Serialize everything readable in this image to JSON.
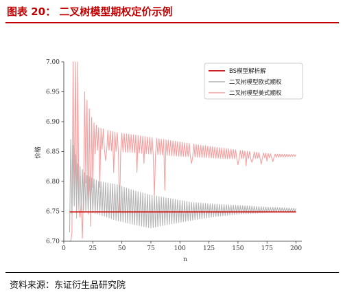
{
  "figure": {
    "number": "图表 20：",
    "title": "二叉树模型期权定价示例"
  },
  "source": "资料来源：东证衍生品研究院",
  "colors": {
    "title": "#c00000",
    "bs": "#c80000",
    "european": "#b4b4b4",
    "american": "#f4a0a0"
  },
  "chart_data": {
    "type": "line",
    "xlabel": "n",
    "ylabel": "价格",
    "xlim": [
      0,
      205
    ],
    "ylim": [
      6.7,
      7.0
    ],
    "xticks": [
      0,
      25,
      50,
      75,
      100,
      125,
      150,
      175,
      200
    ],
    "yticks": [
      6.7,
      6.75,
      6.8,
      6.85,
      6.9,
      6.95,
      7.0
    ],
    "grid": false,
    "legend_position": "upper-right",
    "series": [
      {
        "name": "BS模型解析解",
        "kind": "constant",
        "x_range": [
          5,
          200
        ],
        "value": 6.749
      },
      {
        "name": "二叉树模型欧式期权",
        "kind": "oscillating",
        "x_range": [
          5,
          200
        ],
        "envelope": [
          {
            "n": 5,
            "lower": 6.715,
            "upper": 6.875
          },
          {
            "n": 8,
            "lower": 6.76,
            "upper": 6.86
          },
          {
            "n": 12,
            "lower": 6.755,
            "upper": 6.83
          },
          {
            "n": 20,
            "lower": 6.75,
            "upper": 6.81
          },
          {
            "n": 30,
            "lower": 6.745,
            "upper": 6.8
          },
          {
            "n": 45,
            "lower": 6.735,
            "upper": 6.795
          },
          {
            "n": 60,
            "lower": 6.728,
            "upper": 6.785
          },
          {
            "n": 75,
            "lower": 6.722,
            "upper": 6.777
          },
          {
            "n": 90,
            "lower": 6.728,
            "upper": 6.772
          },
          {
            "n": 110,
            "lower": 6.735,
            "upper": 6.765
          },
          {
            "n": 130,
            "lower": 6.741,
            "upper": 6.762
          },
          {
            "n": 150,
            "lower": 6.745,
            "upper": 6.76
          },
          {
            "n": 175,
            "lower": 6.748,
            "upper": 6.757
          },
          {
            "n": 200,
            "lower": 6.75,
            "upper": 6.755
          }
        ]
      },
      {
        "name": "二叉树模型美式期权",
        "kind": "oscillating",
        "x_range": [
          5,
          200
        ],
        "envelope": [
          {
            "n": 5,
            "lower": 6.7,
            "upper": 7.0
          },
          {
            "n": 12,
            "lower": 6.745,
            "upper": 7.0
          },
          {
            "n": 18,
            "lower": 6.79,
            "upper": 6.95
          },
          {
            "n": 25,
            "lower": 6.84,
            "upper": 6.9
          },
          {
            "n": 30,
            "lower": 6.855,
            "upper": 6.89
          },
          {
            "n": 45,
            "lower": 6.85,
            "upper": 6.882
          },
          {
            "n": 60,
            "lower": 6.848,
            "upper": 6.878
          },
          {
            "n": 80,
            "lower": 6.845,
            "upper": 6.872
          },
          {
            "n": 100,
            "lower": 6.842,
            "upper": 6.866
          },
          {
            "n": 120,
            "lower": 6.84,
            "upper": 6.86
          },
          {
            "n": 140,
            "lower": 6.838,
            "upper": 6.855
          },
          {
            "n": 160,
            "lower": 6.838,
            "upper": 6.85
          },
          {
            "n": 180,
            "lower": 6.84,
            "upper": 6.846
          },
          {
            "n": 200,
            "lower": 6.842,
            "upper": 6.845
          }
        ],
        "dips": [
          {
            "n": 6,
            "value": 6.7
          },
          {
            "n": 9,
            "value": 6.775
          },
          {
            "n": 14,
            "value": 6.74
          },
          {
            "n": 16,
            "value": 6.705
          },
          {
            "n": 21,
            "value": 6.745
          },
          {
            "n": 23,
            "value": 6.725
          },
          {
            "n": 25,
            "value": 6.79
          },
          {
            "n": 31,
            "value": 6.79
          },
          {
            "n": 36,
            "value": 6.835
          },
          {
            "n": 43,
            "value": 6.815
          },
          {
            "n": 48,
            "value": 6.75
          },
          {
            "n": 63,
            "value": 6.815
          },
          {
            "n": 69,
            "value": 6.83
          },
          {
            "n": 78,
            "value": 6.775
          },
          {
            "n": 87,
            "value": 6.785
          },
          {
            "n": 110,
            "value": 6.83
          },
          {
            "n": 150,
            "value": 6.828
          },
          {
            "n": 157,
            "value": 6.826
          },
          {
            "n": 162,
            "value": 6.832
          },
          {
            "n": 170,
            "value": 6.829
          },
          {
            "n": 175,
            "value": 6.834
          },
          {
            "n": 180,
            "value": 6.833
          }
        ]
      }
    ]
  }
}
